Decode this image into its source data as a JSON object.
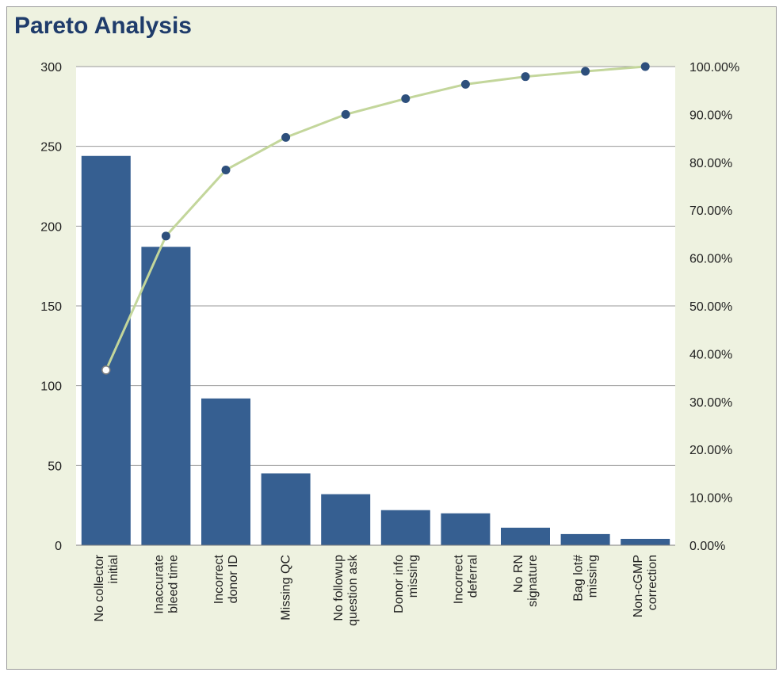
{
  "chart_data": {
    "type": "bar",
    "title": "Pareto Analysis",
    "categories": [
      [
        "No collector",
        "initial"
      ],
      [
        "Inaccurate",
        "bleed time"
      ],
      [
        "Incorrect",
        "donor ID"
      ],
      [
        "Missing QC"
      ],
      [
        "No followup",
        "question ask"
      ],
      [
        "Donor info",
        "missing"
      ],
      [
        "Incorrect",
        "deferral"
      ],
      [
        "No RN",
        "signature"
      ],
      [
        "Bag lot#",
        "missing"
      ],
      [
        "Non-cGMP",
        "correction"
      ]
    ],
    "series": [
      {
        "type": "bar",
        "values": [
          244,
          187,
          92,
          45,
          32,
          22,
          20,
          11,
          7,
          4
        ]
      },
      {
        "type": "line",
        "axis": "right",
        "values": [
          36.6,
          64.6,
          78.4,
          85.2,
          90.0,
          93.3,
          96.3,
          97.9,
          99.0,
          100.0
        ]
      }
    ],
    "y_left": {
      "ylim": [
        0,
        300
      ],
      "ticks": [
        "0",
        "50",
        "100",
        "150",
        "200",
        "250",
        "300"
      ]
    },
    "y_right": {
      "ylim": [
        0,
        100
      ],
      "ticks": [
        "0.00%",
        "10.00%",
        "20.00%",
        "30.00%",
        "40.00%",
        "50.00%",
        "60.00%",
        "70.00%",
        "80.00%",
        "90.00%",
        "100.00%"
      ]
    },
    "grid": true,
    "legend": "none",
    "colors": {
      "bar": "#365f91",
      "line": "#c3d69b",
      "marker": "#2d4f7c",
      "background": "#eef2e0",
      "plot": "#ffffff",
      "title": "#1f3c6b"
    }
  }
}
